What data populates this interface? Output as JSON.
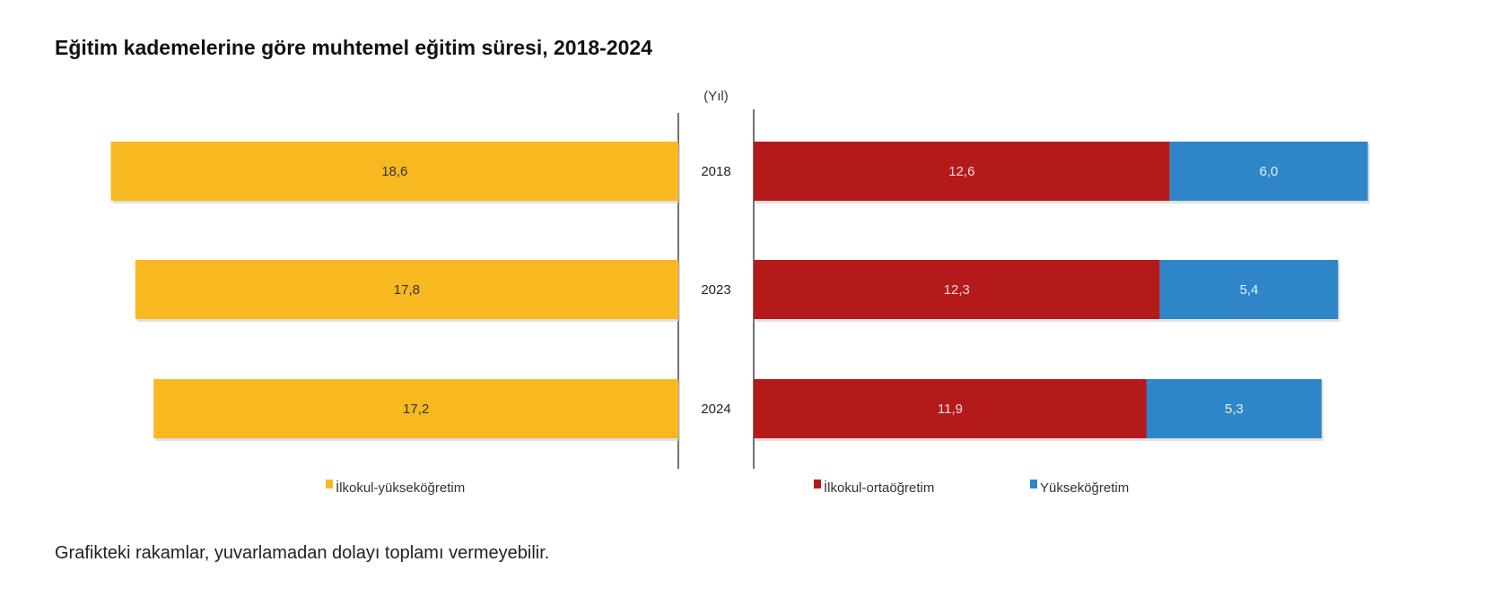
{
  "title": "Eğitim kademelerine göre muhtemel eğitim süresi, 2018-2024",
  "footnote": "Grafikteki rakamlar, yuvarlamadan dolayı toplamı vermeyebilir.",
  "chart_data": {
    "type": "bar",
    "orientation": "horizontal",
    "unit_label": "(Yıl)",
    "categories": [
      "2018",
      "2023",
      "2024"
    ],
    "series": [
      {
        "name": "İlkokul-yükseköğretim",
        "values": [
          18.6,
          17.8,
          17.2
        ],
        "color": "#F8B820",
        "side": "left"
      },
      {
        "name": "İlkokul-ortaöğretim",
        "values": [
          12.6,
          12.3,
          11.9
        ],
        "color": "#B51A1A",
        "side": "right",
        "stack": "right"
      },
      {
        "name": "Yükseköğretim",
        "values": [
          6.0,
          5.4,
          5.3
        ],
        "color": "#2E86C8",
        "side": "right",
        "stack": "right"
      }
    ],
    "value_labels": [
      [
        "18,6",
        "17,8",
        "17,2"
      ],
      [
        "12,6",
        "12,3",
        "11,9"
      ],
      [
        "6,0",
        "5,4",
        "5,3"
      ]
    ],
    "legend": "bottom",
    "grid": false
  }
}
